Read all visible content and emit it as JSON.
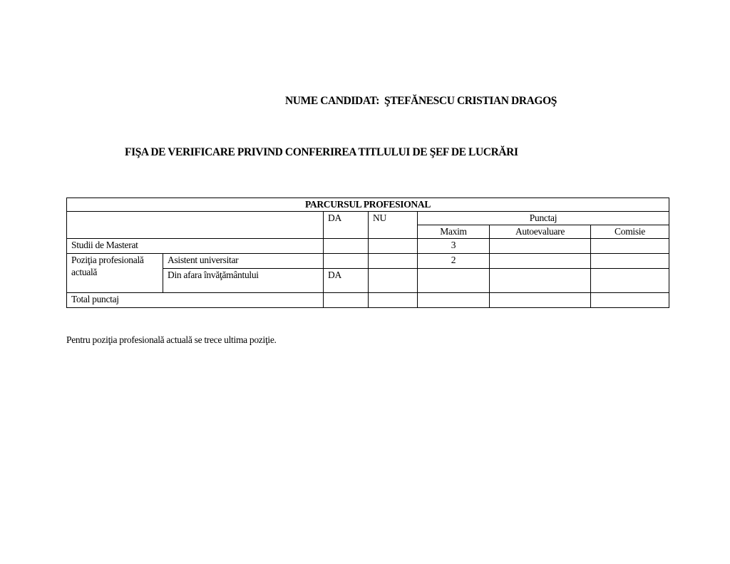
{
  "candidate": {
    "label": "NUME CANDIDAT:",
    "name": "ŞTEFĂNESCU CRISTIAN DRAGOŞ"
  },
  "title": "FIŞA DE VERIFICARE PRIVIND CONFERIREA TITLULUI DE ŞEF DE LUCRĂRI",
  "table": {
    "heading": "PARCURSUL PROFESIONAL",
    "col_da": "DA",
    "col_nu": "NU",
    "col_punctaj": "Punctaj",
    "col_maxim": "Maxim",
    "col_autoevaluare": "Autoevaluare",
    "col_comisie": "Comisie",
    "rows": [
      {
        "label": "Studii de Masterat",
        "da": "",
        "nu": "",
        "maxim": "3"
      },
      {
        "group": "Poziţia profesională actuală",
        "label": "Asistent universitar",
        "da": "",
        "nu": "",
        "maxim": "2"
      },
      {
        "label": "Din afara învăţământului",
        "da": "DA",
        "nu": "",
        "maxim": ""
      },
      {
        "label": "Total punctaj"
      }
    ]
  },
  "note": "Pentru poziţia profesională actuală se trece ultima poziţie."
}
